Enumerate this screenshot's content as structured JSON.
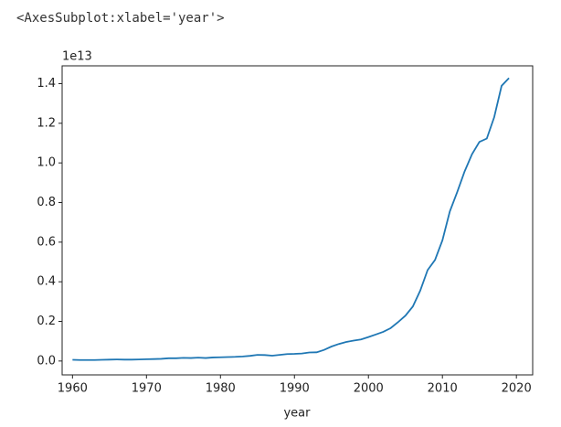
{
  "output_text": "<AxesSubplot:xlabel='year'>",
  "chart_data": {
    "type": "line",
    "xlabel": "year",
    "y_offset_label": "1e13",
    "color": "#1f77b4",
    "x": [
      1960,
      1961,
      1962,
      1963,
      1964,
      1965,
      1966,
      1967,
      1968,
      1969,
      1970,
      1971,
      1972,
      1973,
      1974,
      1975,
      1976,
      1977,
      1978,
      1979,
      1980,
      1981,
      1982,
      1983,
      1984,
      1985,
      1986,
      1987,
      1988,
      1989,
      1990,
      1991,
      1992,
      1993,
      1994,
      1995,
      1996,
      1997,
      1998,
      1999,
      2000,
      2001,
      2002,
      2003,
      2004,
      2005,
      2006,
      2007,
      2008,
      2009,
      2010,
      2011,
      2012,
      2013,
      2014,
      2015,
      2016,
      2017,
      2018,
      2019
    ],
    "values": [
      0.006,
      0.005,
      0.005,
      0.005,
      0.006,
      0.007,
      0.008,
      0.007,
      0.007,
      0.008,
      0.009,
      0.01,
      0.011,
      0.014,
      0.014,
      0.016,
      0.015,
      0.017,
      0.015,
      0.018,
      0.019,
      0.02,
      0.021,
      0.023,
      0.026,
      0.031,
      0.03,
      0.027,
      0.031,
      0.035,
      0.036,
      0.038,
      0.043,
      0.044,
      0.056,
      0.073,
      0.086,
      0.096,
      0.103,
      0.109,
      0.121,
      0.134,
      0.147,
      0.166,
      0.196,
      0.229,
      0.275,
      0.355,
      0.459,
      0.51,
      0.609,
      0.755,
      0.853,
      0.957,
      1.044,
      1.106,
      1.123,
      1.231,
      1.389,
      1.428
    ],
    "xlim": [
      1958.6,
      2022.2
    ],
    "ylim": [
      -0.07,
      1.49
    ],
    "xticks": [
      1960,
      1970,
      1980,
      1990,
      2000,
      2010,
      2020
    ],
    "yticks": [
      {
        "value": 0,
        "label": "0.0"
      },
      0.2,
      0.4,
      0.6,
      0.8,
      {
        "value": 1,
        "label": "1.0"
      },
      1.2,
      1.4
    ]
  }
}
